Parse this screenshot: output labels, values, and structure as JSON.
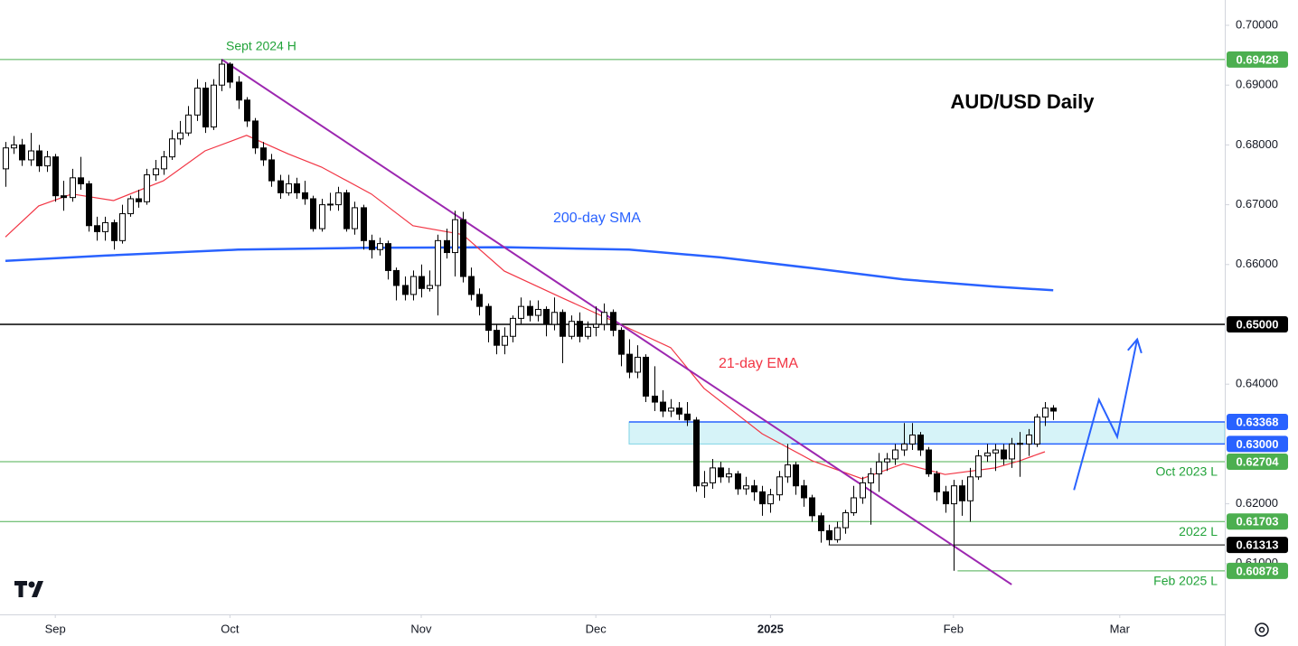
{
  "chart_data": {
    "type": "candlestick",
    "title": "AUD/USD Daily",
    "ylim": [
      0.60151,
      0.70423
    ],
    "xlim": [
      -0.65,
      146.63
    ],
    "yticks": [
      {
        "value": 0.7,
        "label": "0.70000"
      },
      {
        "value": 0.69,
        "label": "0.69000"
      },
      {
        "value": 0.68,
        "label": "0.68000"
      },
      {
        "value": 0.67,
        "label": "0.67000"
      },
      {
        "value": 0.66,
        "label": "0.66000"
      },
      {
        "value": 0.64,
        "label": "0.64000"
      },
      {
        "value": 0.62,
        "label": "0.62000"
      },
      {
        "value": 0.61,
        "label": "0.61000"
      }
    ],
    "xticks": [
      {
        "value": 6,
        "label": "Sep"
      },
      {
        "value": 27,
        "label": "Oct"
      },
      {
        "value": 50,
        "label": "Nov"
      },
      {
        "value": 71,
        "label": "Dec"
      },
      {
        "value": 92,
        "label": "2025"
      },
      {
        "value": 114,
        "label": "Feb"
      },
      {
        "value": 134,
        "label": "Mar"
      }
    ],
    "up_color": "#ffffff",
    "down_color": "#000000",
    "ohlc": [
      [
        0.676,
        0.6805,
        0.673,
        0.6795
      ],
      [
        0.6795,
        0.6815,
        0.6785,
        0.68
      ],
      [
        0.68,
        0.681,
        0.6765,
        0.6775
      ],
      [
        0.6775,
        0.682,
        0.6765,
        0.679
      ],
      [
        0.679,
        0.68,
        0.6755,
        0.6765
      ],
      [
        0.6765,
        0.679,
        0.6755,
        0.678
      ],
      [
        0.678,
        0.6785,
        0.6705,
        0.6715
      ],
      [
        0.6715,
        0.674,
        0.669,
        0.6712
      ],
      [
        0.6712,
        0.676,
        0.6705,
        0.6745
      ],
      [
        0.6745,
        0.678,
        0.6725,
        0.6735
      ],
      [
        0.6735,
        0.674,
        0.6655,
        0.6665
      ],
      [
        0.6665,
        0.668,
        0.664,
        0.6655
      ],
      [
        0.6655,
        0.668,
        0.664,
        0.667
      ],
      [
        0.667,
        0.6675,
        0.6625,
        0.664
      ],
      [
        0.664,
        0.67,
        0.6635,
        0.6685
      ],
      [
        0.6685,
        0.6715,
        0.668,
        0.671
      ],
      [
        0.671,
        0.6725,
        0.6695,
        0.6705
      ],
      [
        0.6705,
        0.676,
        0.67,
        0.675
      ],
      [
        0.675,
        0.6775,
        0.674,
        0.676
      ],
      [
        0.676,
        0.679,
        0.675,
        0.678
      ],
      [
        0.678,
        0.6825,
        0.6775,
        0.681
      ],
      [
        0.681,
        0.684,
        0.68,
        0.682
      ],
      [
        0.682,
        0.6865,
        0.6815,
        0.685
      ],
      [
        0.685,
        0.691,
        0.684,
        0.6895
      ],
      [
        0.6895,
        0.6905,
        0.682,
        0.683
      ],
      [
        0.683,
        0.691,
        0.6825,
        0.69
      ],
      [
        0.69,
        0.6943,
        0.689,
        0.6935
      ],
      [
        0.6935,
        0.6938,
        0.6895,
        0.6905
      ],
      [
        0.6905,
        0.6915,
        0.686,
        0.6875
      ],
      [
        0.6875,
        0.688,
        0.683,
        0.684
      ],
      [
        0.684,
        0.6845,
        0.6785,
        0.6795
      ],
      [
        0.6795,
        0.6805,
        0.6765,
        0.6775
      ],
      [
        0.6775,
        0.6785,
        0.673,
        0.674
      ],
      [
        0.674,
        0.675,
        0.671,
        0.672
      ],
      [
        0.672,
        0.675,
        0.6715,
        0.6735
      ],
      [
        0.6735,
        0.6745,
        0.671,
        0.672
      ],
      [
        0.672,
        0.674,
        0.67,
        0.671
      ],
      [
        0.671,
        0.6715,
        0.6655,
        0.666
      ],
      [
        0.666,
        0.671,
        0.6655,
        0.67
      ],
      [
        0.67,
        0.672,
        0.669,
        0.6701
      ],
      [
        0.67,
        0.673,
        0.669,
        0.672
      ],
      [
        0.672,
        0.6725,
        0.6655,
        0.666
      ],
      [
        0.666,
        0.6705,
        0.665,
        0.6695
      ],
      [
        0.6695,
        0.67,
        0.6625,
        0.664
      ],
      [
        0.664,
        0.665,
        0.661,
        0.6625
      ],
      [
        0.6625,
        0.6645,
        0.6615,
        0.6635
      ],
      [
        0.6635,
        0.664,
        0.6575,
        0.659
      ],
      [
        0.659,
        0.6595,
        0.654,
        0.6565
      ],
      [
        0.6565,
        0.658,
        0.654,
        0.655
      ],
      [
        0.655,
        0.659,
        0.654,
        0.658
      ],
      [
        0.658,
        0.66,
        0.6545,
        0.656
      ],
      [
        0.656,
        0.659,
        0.6555,
        0.6565
      ],
      [
        0.6565,
        0.665,
        0.6515,
        0.664
      ],
      [
        0.664,
        0.666,
        0.661,
        0.662
      ],
      [
        0.662,
        0.669,
        0.658,
        0.6675
      ],
      [
        0.6675,
        0.6688,
        0.657,
        0.658
      ],
      [
        0.658,
        0.6595,
        0.654,
        0.655
      ],
      [
        0.655,
        0.656,
        0.6515,
        0.653
      ],
      [
        0.653,
        0.6535,
        0.647,
        0.649
      ],
      [
        0.649,
        0.65,
        0.645,
        0.6465
      ],
      [
        0.6465,
        0.6495,
        0.645,
        0.648
      ],
      [
        0.648,
        0.6515,
        0.647,
        0.651
      ],
      [
        0.651,
        0.6545,
        0.65,
        0.653
      ],
      [
        0.653,
        0.654,
        0.6505,
        0.6515
      ],
      [
        0.6515,
        0.654,
        0.6505,
        0.6525
      ],
      [
        0.6525,
        0.653,
        0.648,
        0.65
      ],
      [
        0.65,
        0.6545,
        0.649,
        0.652
      ],
      [
        0.652,
        0.6525,
        0.6435,
        0.648
      ],
      [
        0.648,
        0.6515,
        0.6475,
        0.6505
      ],
      [
        0.6505,
        0.652,
        0.647,
        0.648
      ],
      [
        0.648,
        0.6505,
        0.6475,
        0.6495
      ],
      [
        0.6495,
        0.653,
        0.648,
        0.65
      ],
      [
        0.65,
        0.6535,
        0.649,
        0.652
      ],
      [
        0.652,
        0.6525,
        0.648,
        0.649
      ],
      [
        0.649,
        0.6495,
        0.643,
        0.645
      ],
      [
        0.645,
        0.6475,
        0.641,
        0.642
      ],
      [
        0.642,
        0.6465,
        0.641,
        0.6445
      ],
      [
        0.6445,
        0.645,
        0.637,
        0.638
      ],
      [
        0.638,
        0.643,
        0.6355,
        0.637
      ],
      [
        0.637,
        0.639,
        0.6345,
        0.6355
      ],
      [
        0.6355,
        0.6375,
        0.6345,
        0.636
      ],
      [
        0.636,
        0.637,
        0.634,
        0.635
      ],
      [
        0.635,
        0.637,
        0.633,
        0.634
      ],
      [
        0.634,
        0.6345,
        0.622,
        0.623
      ],
      [
        0.623,
        0.6255,
        0.621,
        0.6235
      ],
      [
        0.6235,
        0.6275,
        0.6225,
        0.626
      ],
      [
        0.626,
        0.627,
        0.6235,
        0.6245
      ],
      [
        0.6245,
        0.626,
        0.6235,
        0.625
      ],
      [
        0.625,
        0.6255,
        0.6215,
        0.6225
      ],
      [
        0.6225,
        0.6245,
        0.6215,
        0.623
      ],
      [
        0.623,
        0.624,
        0.6205,
        0.622
      ],
      [
        0.622,
        0.623,
        0.618,
        0.62
      ],
      [
        0.62,
        0.6225,
        0.6185,
        0.6215
      ],
      [
        0.6215,
        0.6255,
        0.6205,
        0.6245
      ],
      [
        0.6245,
        0.63,
        0.6235,
        0.6265
      ],
      [
        0.6265,
        0.627,
        0.6215,
        0.623
      ],
      [
        0.623,
        0.624,
        0.6195,
        0.621
      ],
      [
        0.621,
        0.6215,
        0.617,
        0.618
      ],
      [
        0.618,
        0.6185,
        0.6135,
        0.6155
      ],
      [
        0.6155,
        0.6165,
        0.6131,
        0.614
      ],
      [
        0.614,
        0.617,
        0.6135,
        0.616
      ],
      [
        0.616,
        0.619,
        0.615,
        0.6185
      ],
      [
        0.6185,
        0.623,
        0.618,
        0.621
      ],
      [
        0.621,
        0.6245,
        0.62,
        0.6235
      ],
      [
        0.6235,
        0.626,
        0.6165,
        0.625
      ],
      [
        0.625,
        0.6285,
        0.622,
        0.627
      ],
      [
        0.627,
        0.6285,
        0.6255,
        0.6275
      ],
      [
        0.6275,
        0.63,
        0.6265,
        0.629
      ],
      [
        0.629,
        0.6335,
        0.628,
        0.63
      ],
      [
        0.63,
        0.6335,
        0.629,
        0.6315
      ],
      [
        0.6315,
        0.632,
        0.628,
        0.629
      ],
      [
        0.629,
        0.6295,
        0.6245,
        0.625
      ],
      [
        0.625,
        0.6255,
        0.6205,
        0.622
      ],
      [
        0.622,
        0.623,
        0.6185,
        0.62
      ],
      [
        0.62,
        0.624,
        0.6088,
        0.623
      ],
      [
        0.623,
        0.624,
        0.618,
        0.6205
      ],
      [
        0.6205,
        0.626,
        0.617,
        0.6245
      ],
      [
        0.6245,
        0.629,
        0.624,
        0.628
      ],
      [
        0.628,
        0.63,
        0.627,
        0.6285
      ],
      [
        0.6285,
        0.63,
        0.6255,
        0.629
      ],
      [
        0.629,
        0.63,
        0.6265,
        0.6275
      ],
      [
        0.6275,
        0.631,
        0.626,
        0.63
      ],
      [
        0.63,
        0.632,
        0.6245,
        0.6301
      ],
      [
        0.63,
        0.6325,
        0.628,
        0.6315
      ],
      [
        0.63,
        0.635,
        0.6295,
        0.6345
      ],
      [
        0.6345,
        0.637,
        0.633,
        0.636
      ],
      [
        0.636,
        0.6365,
        0.634,
        0.6355
      ]
    ],
    "lines": [
      {
        "name": "200-day SMA",
        "color": "#2962ff",
        "x": [
          0,
          12,
          28,
          43,
          60,
          75,
          86,
          97,
          108,
          119,
          126
        ],
        "values": [
          0.6606,
          0.6615,
          0.6625,
          0.6628,
          0.6629,
          0.6625,
          0.6612,
          0.6594,
          0.6575,
          0.6563,
          0.6557
        ]
      },
      {
        "name": "21-day EMA",
        "color": "#f23645",
        "x": [
          0,
          4,
          8,
          13,
          19,
          24,
          29,
          34,
          38,
          44,
          49,
          55,
          60,
          67,
          73,
          80,
          84,
          91,
          97,
          103,
          108,
          113,
          119,
          122,
          125
        ],
        "values": [
          0.6646,
          0.6698,
          0.6718,
          0.6707,
          0.674,
          0.679,
          0.6816,
          0.6785,
          0.6763,
          0.6718,
          0.6665,
          0.665,
          0.6589,
          0.6544,
          0.6506,
          0.6461,
          0.6393,
          0.6317,
          0.6272,
          0.6242,
          0.6267,
          0.6249,
          0.626,
          0.6272,
          0.6287
        ]
      }
    ],
    "levels": [
      {
        "value": 0.69428,
        "label": "0.69428",
        "color": "#4caf50",
        "note": "Sept 2024 H"
      },
      {
        "value": 0.65,
        "label": "0.65000",
        "color": "#000000"
      },
      {
        "value": 0.63368,
        "label": "0.63368",
        "color": "#2962ff",
        "from": 75
      },
      {
        "value": 0.63,
        "label": "0.63000",
        "color": "#2962ff",
        "from": 94.5
      },
      {
        "value": 0.62704,
        "label": "0.62704",
        "color": "#4caf50",
        "note": "Oct 2023 L"
      },
      {
        "value": 0.61703,
        "label": "0.61703",
        "color": "#4caf50",
        "note": "2022 L"
      },
      {
        "value": 0.61313,
        "label": "0.61313",
        "color": "#000000",
        "from": 99
      },
      {
        "value": 0.60878,
        "label": "0.60878",
        "color": "#4caf50",
        "from": 114.5,
        "note": "Feb 2025 L"
      }
    ],
    "zone_color": "#d6f3f8",
    "trendline": {
      "color": "#9c27b0",
      "x": [
        26,
        121
      ],
      "values": [
        0.6943,
        0.6065
      ]
    },
    "forecast": {
      "color": "#2962ff",
      "x": [
        128.5,
        131.5,
        133.7,
        136.1
      ],
      "values": [
        0.6223,
        0.6374,
        0.6312,
        0.6475
      ]
    }
  }
}
